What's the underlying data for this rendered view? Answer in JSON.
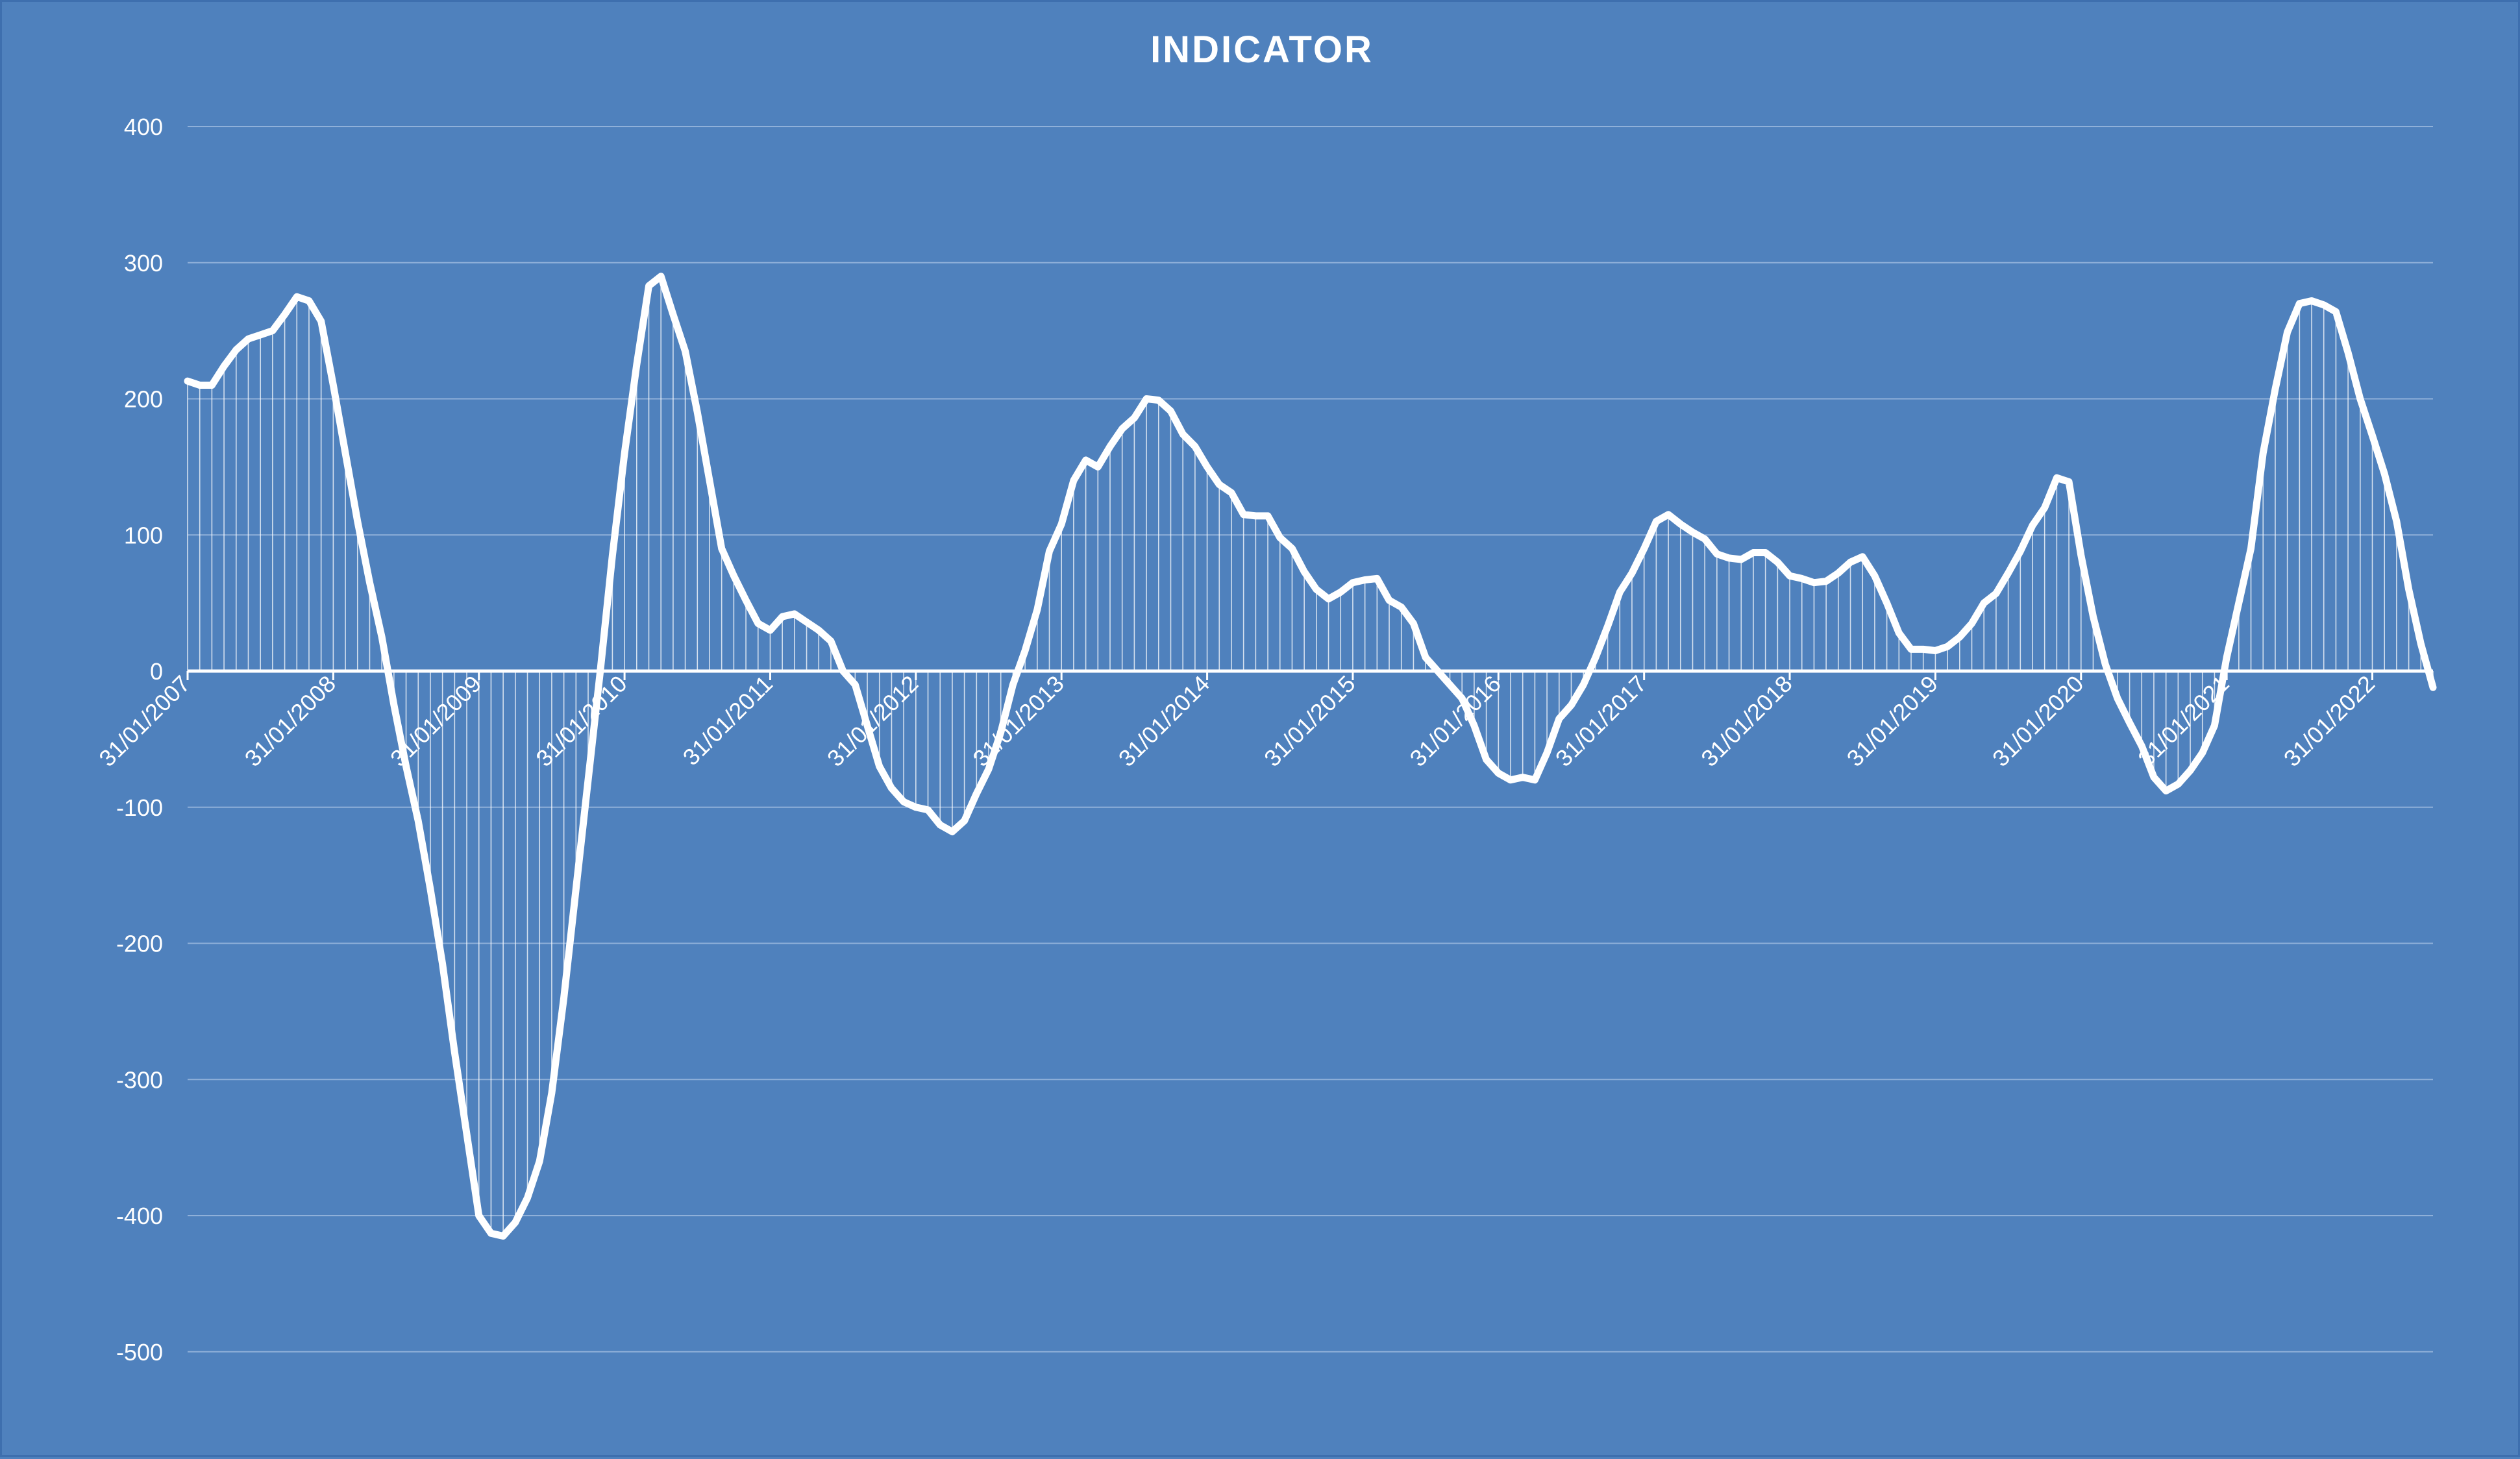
{
  "chart_data": {
    "type": "line",
    "title": "INDICATOR",
    "xlabel": "",
    "ylabel": "",
    "ylim": [
      -500,
      400
    ],
    "y_ticks": [
      "400",
      "300",
      "200",
      "100",
      "0",
      "-100",
      "-200",
      "-300",
      "-400",
      "-500"
    ],
    "x_ticks": [
      "31/01/2007",
      "31/01/2008",
      "31/01/2009",
      "31/01/2010",
      "31/01/2011",
      "31/01/2012",
      "31/01/2013",
      "31/01/2014",
      "31/01/2015",
      "31/01/2016",
      "31/01/2017",
      "31/01/2018",
      "31/01/2019",
      "31/01/2020",
      "31/01/2021",
      "31/01/2022"
    ],
    "grid": true,
    "drop_lines": true,
    "legend": "none",
    "colors": {
      "background": "#4F81BD",
      "line": "#FFFFFF",
      "grid": "#8FB0D9"
    },
    "series": [
      {
        "x": [
          "2007-01",
          "2007-02",
          "2007-03",
          "2007-04",
          "2007-05",
          "2007-06",
          "2007-07",
          "2007-08",
          "2007-09",
          "2007-10",
          "2007-11",
          "2007-12",
          "2008-01",
          "2008-02",
          "2008-03",
          "2008-04",
          "2008-05",
          "2008-06",
          "2008-07",
          "2008-08",
          "2008-09",
          "2008-10",
          "2008-11",
          "2008-12",
          "2009-01",
          "2009-02",
          "2009-03",
          "2009-04",
          "2009-05",
          "2009-06",
          "2009-07",
          "2009-08",
          "2009-09",
          "2009-10",
          "2009-11",
          "2009-12",
          "2010-01",
          "2010-02",
          "2010-03",
          "2010-04",
          "2010-05",
          "2010-06",
          "2010-07",
          "2010-08",
          "2010-09",
          "2010-10",
          "2010-11",
          "2010-12",
          "2011-01",
          "2011-02",
          "2011-03",
          "2011-04",
          "2011-05",
          "2011-06",
          "2011-07",
          "2011-08",
          "2011-09",
          "2011-10",
          "2011-11",
          "2011-12",
          "2012-01",
          "2012-02",
          "2012-03",
          "2012-04",
          "2012-05",
          "2012-06",
          "2012-07",
          "2012-08",
          "2012-09",
          "2012-10",
          "2012-11",
          "2012-12",
          "2013-01",
          "2013-02",
          "2013-03",
          "2013-04",
          "2013-05",
          "2013-06",
          "2013-07",
          "2013-08",
          "2013-09",
          "2013-10",
          "2013-11",
          "2013-12",
          "2014-01",
          "2014-02",
          "2014-03",
          "2014-04",
          "2014-05",
          "2014-06",
          "2014-07",
          "2014-08",
          "2014-09",
          "2014-10",
          "2014-11",
          "2014-12",
          "2015-01",
          "2015-02",
          "2015-03",
          "2015-04",
          "2015-05",
          "2015-06",
          "2015-07",
          "2015-08",
          "2015-09",
          "2015-10",
          "2015-11",
          "2015-12",
          "2016-01",
          "2016-02",
          "2016-03",
          "2016-04",
          "2016-05",
          "2016-06",
          "2016-07",
          "2016-08",
          "2016-09",
          "2016-10",
          "2016-11",
          "2016-12",
          "2017-01",
          "2017-02",
          "2017-03",
          "2017-04",
          "2017-05",
          "2017-06",
          "2017-07",
          "2017-08",
          "2017-09",
          "2017-10",
          "2017-11",
          "2017-12",
          "2018-01",
          "2018-02",
          "2018-03",
          "2018-04",
          "2018-05",
          "2018-06",
          "2018-07",
          "2018-08",
          "2018-09",
          "2018-10",
          "2018-11",
          "2018-12",
          "2019-01",
          "2019-02",
          "2019-03",
          "2019-04",
          "2019-05",
          "2019-06",
          "2019-07",
          "2019-08",
          "2019-09",
          "2019-10",
          "2019-11",
          "2019-12",
          "2020-01",
          "2020-02",
          "2020-03",
          "2020-04",
          "2020-05",
          "2020-06",
          "2020-07",
          "2020-08",
          "2020-09",
          "2020-10",
          "2020-11",
          "2020-12",
          "2021-01",
          "2021-02",
          "2021-03",
          "2021-04",
          "2021-05",
          "2021-06",
          "2021-07",
          "2021-08",
          "2021-09",
          "2021-10",
          "2021-11",
          "2021-12",
          "2022-01",
          "2022-02",
          "2022-03",
          "2022-04",
          "2022-05",
          "2022-06"
        ],
        "values": [
          213,
          210,
          210,
          224,
          236,
          244,
          247,
          250,
          262,
          275,
          272,
          257,
          210,
          160,
          110,
          65,
          25,
          -25,
          -70,
          -110,
          -160,
          -215,
          -280,
          -340,
          -400,
          -413,
          -415,
          -405,
          -387,
          -360,
          -310,
          -240,
          -160,
          -80,
          0,
          85,
          160,
          225,
          283,
          290,
          262,
          235,
          190,
          140,
          90,
          70,
          52,
          35,
          30,
          40,
          42,
          36,
          30,
          22,
          0,
          -10,
          -40,
          -70,
          -86,
          -96,
          -100,
          -102,
          -113,
          -118,
          -110,
          -90,
          -72,
          -45,
          -10,
          15,
          45,
          88,
          108,
          140,
          155,
          150,
          165,
          178,
          186,
          200,
          199,
          191,
          174,
          165,
          150,
          137,
          131,
          115,
          114,
          114,
          98,
          90,
          73,
          60,
          53,
          58,
          65,
          67,
          68,
          52,
          47,
          35,
          10,
          0,
          -10,
          -20,
          -40,
          -65,
          -75,
          -80,
          -78,
          -80,
          -60,
          -35,
          -25,
          -10,
          10,
          33,
          58,
          72,
          90,
          110,
          115,
          108,
          102,
          97,
          86,
          83,
          82,
          87,
          87,
          80,
          70,
          68,
          65,
          66,
          72,
          80,
          84,
          70,
          50,
          28,
          16,
          16,
          15,
          18,
          25,
          35,
          50,
          57,
          72,
          88,
          107,
          120,
          142,
          139,
          85,
          40,
          5,
          -20,
          -38,
          -55,
          -78,
          -88,
          -83,
          -73,
          -60,
          -40,
          10,
          50,
          90,
          160,
          207,
          249,
          270,
          272,
          269,
          264,
          234,
          200,
          173,
          145,
          110,
          60,
          20,
          -12
        ],
        "x_range": [
          "2007-01",
          "2022-06"
        ]
      }
    ]
  }
}
